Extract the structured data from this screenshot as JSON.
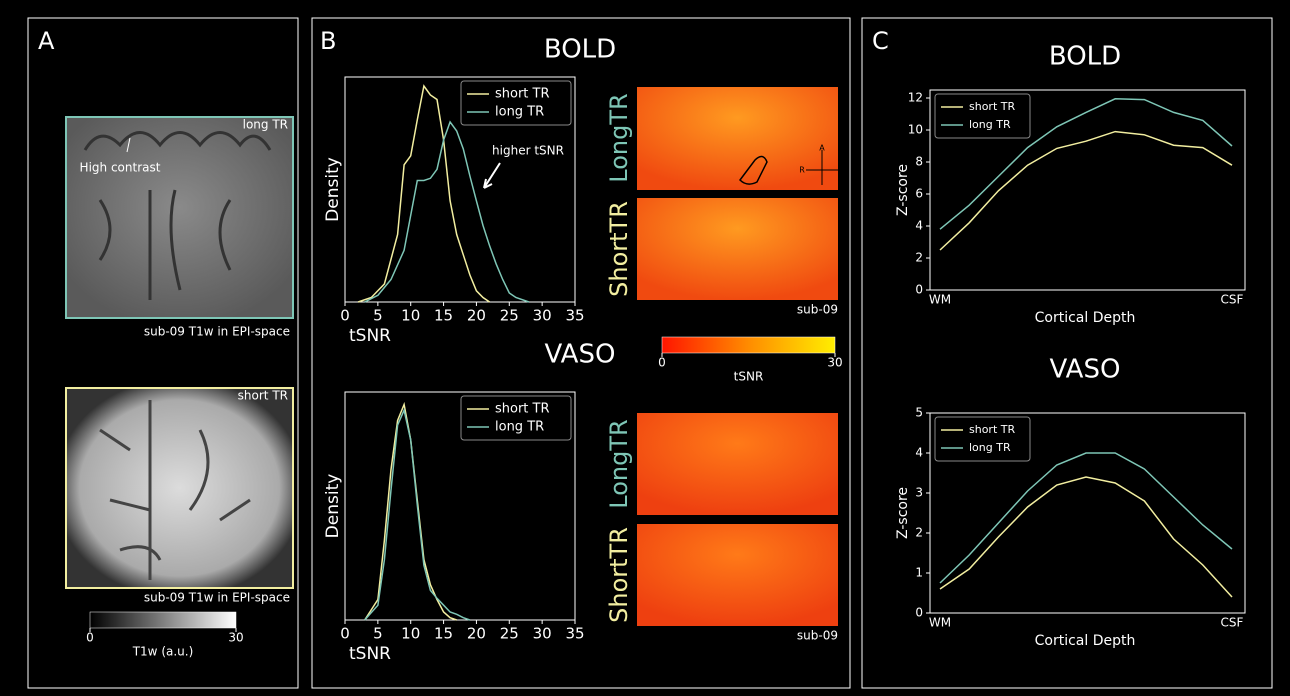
{
  "figure": {
    "panel_labels": [
      "A",
      "B",
      "C"
    ],
    "panel_a": {
      "top_tag": "long TR",
      "top_annotation": "High contrast",
      "top_caption": "sub-09 T1w in EPI-space",
      "bottom_tag": "short TR",
      "bottom_caption": "sub-09 T1w in EPI-space",
      "colorbar": {
        "clim": [
          0,
          30
        ],
        "ticks": [
          0,
          30
        ],
        "label": "T1w (a.u.)"
      }
    },
    "panel_b": {
      "bold_rows": [
        "LongTR",
        "ShortTR"
      ],
      "bold_caption": "sub-09",
      "orient_a": "A",
      "orient_r": "R",
      "vaso_rows": [
        "LongTR",
        "ShortTR"
      ],
      "vaso_caption": "sub-09",
      "annotation": "higher tSNR",
      "colorbar": {
        "clim": [
          0,
          30
        ],
        "ticks": [
          0,
          30
        ],
        "label": "tSNR"
      }
    }
  },
  "chart_data": [
    {
      "type": "line",
      "title": "BOLD",
      "xlabel": "tSNR",
      "ylabel": "Density",
      "xlim": [
        0,
        35
      ],
      "xticks": [
        0,
        5,
        10,
        15,
        20,
        25,
        30,
        35
      ],
      "ylim": [
        0,
        0.1
      ],
      "legend": "upper right",
      "series": [
        {
          "name": "short TR",
          "color": "#f2eea0",
          "x": [
            2,
            4,
            6,
            8,
            9,
            10,
            11,
            12,
            13,
            14,
            15,
            16,
            17,
            18,
            19,
            20,
            21,
            22
          ],
          "values": [
            0,
            0.002,
            0.008,
            0.03,
            0.061,
            0.065,
            0.081,
            0.096,
            0.092,
            0.09,
            0.072,
            0.045,
            0.03,
            0.021,
            0.012,
            0.005,
            0.002,
            0
          ]
        },
        {
          "name": "long TR",
          "color": "#7ec6b6",
          "x": [
            3,
            5,
            7,
            9,
            11,
            12,
            13,
            14,
            15,
            16,
            17,
            18,
            19,
            20,
            21,
            22,
            23,
            24,
            25,
            26,
            28
          ],
          "values": [
            0,
            0.003,
            0.01,
            0.023,
            0.054,
            0.054,
            0.055,
            0.059,
            0.072,
            0.08,
            0.076,
            0.068,
            0.056,
            0.045,
            0.034,
            0.025,
            0.017,
            0.01,
            0.004,
            0.002,
            0
          ]
        }
      ]
    },
    {
      "type": "line",
      "title": "VASO",
      "xlabel": "tSNR",
      "ylabel": "Density",
      "xlim": [
        0,
        35
      ],
      "xticks": [
        0,
        5,
        10,
        15,
        20,
        25,
        30,
        35
      ],
      "ylim": [
        0,
        0.2
      ],
      "legend": "upper right",
      "series": [
        {
          "name": "short TR",
          "color": "#f2eea0",
          "x": [
            3,
            5,
            6,
            7,
            8,
            9,
            10,
            11,
            12,
            13,
            14,
            15,
            16,
            17
          ],
          "values": [
            0,
            0.018,
            0.07,
            0.132,
            0.175,
            0.189,
            0.158,
            0.105,
            0.053,
            0.031,
            0.018,
            0.007,
            0.002,
            0
          ]
        },
        {
          "name": "long TR",
          "color": "#7ec6b6",
          "x": [
            3,
            5,
            6,
            7,
            8,
            9,
            10,
            11,
            12,
            13,
            14,
            15,
            16,
            17,
            18,
            19
          ],
          "values": [
            0,
            0.013,
            0.053,
            0.114,
            0.171,
            0.184,
            0.158,
            0.101,
            0.048,
            0.026,
            0.019,
            0.013,
            0.007,
            0.005,
            0.002,
            0
          ]
        }
      ]
    },
    {
      "type": "line",
      "title": "BOLD",
      "xlabel": "Cortical Depth",
      "ylabel": "Z-score",
      "categories": [
        "WM",
        null,
        null,
        null,
        null,
        null,
        null,
        null,
        null,
        null,
        "CSF"
      ],
      "ylim": [
        0,
        12.5
      ],
      "yticks": [
        0,
        2,
        4,
        6,
        8,
        10,
        12
      ],
      "legend": "upper left",
      "series": [
        {
          "name": "short TR",
          "color": "#f2eea0",
          "values": [
            2.5,
            4.2,
            6.2,
            7.8,
            8.85,
            9.3,
            9.9,
            9.7,
            9.05,
            8.9,
            7.8
          ]
        },
        {
          "name": "long TR",
          "color": "#7ec6b6",
          "values": [
            3.8,
            5.3,
            7.1,
            8.9,
            10.2,
            11.1,
            11.95,
            11.9,
            11.1,
            10.6,
            9.0
          ]
        }
      ]
    },
    {
      "type": "line",
      "title": "VASO",
      "xlabel": "Cortical Depth",
      "ylabel": "Z-score",
      "categories": [
        "WM",
        null,
        null,
        null,
        null,
        null,
        null,
        null,
        null,
        null,
        "CSF"
      ],
      "ylim": [
        0,
        5
      ],
      "yticks": [
        0,
        1,
        2,
        3,
        4,
        5
      ],
      "legend": "upper left",
      "series": [
        {
          "name": "short TR",
          "color": "#f2eea0",
          "values": [
            0.6,
            1.1,
            1.9,
            2.65,
            3.2,
            3.4,
            3.25,
            2.8,
            1.85,
            1.2,
            0.4
          ]
        },
        {
          "name": "long TR",
          "color": "#7ec6b6",
          "values": [
            0.75,
            1.45,
            2.25,
            3.05,
            3.7,
            4.0,
            4.0,
            3.6,
            2.9,
            2.2,
            1.6
          ]
        }
      ]
    }
  ]
}
